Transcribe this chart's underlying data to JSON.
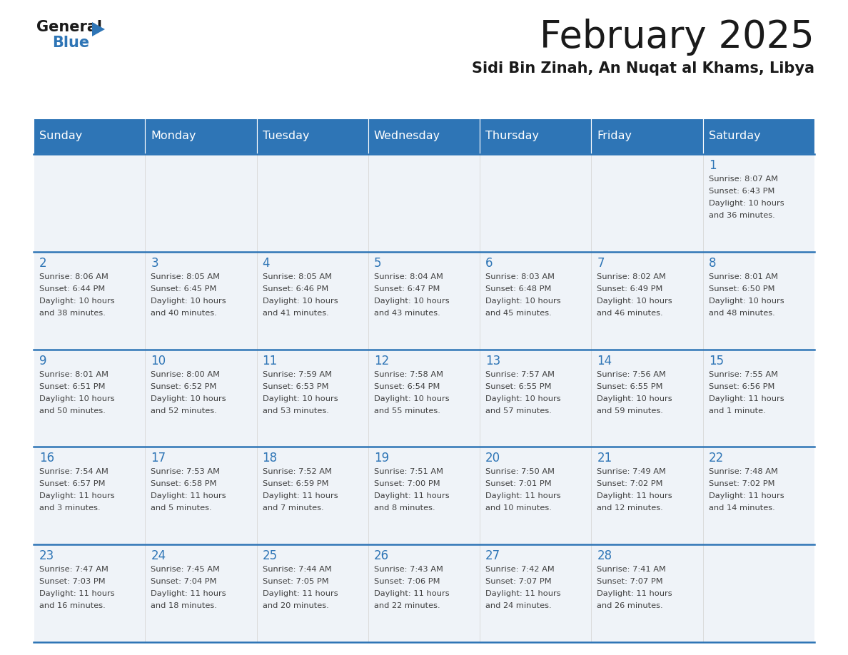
{
  "title": "February 2025",
  "subtitle": "Sidi Bin Zinah, An Nuqat al Khams, Libya",
  "header_bg": "#2e75b6",
  "header_text_color": "#ffffff",
  "cell_bg": "#f0f4f8",
  "day_number_color": "#2e75b6",
  "text_color": "#404040",
  "border_color": "#2e75b6",
  "days_of_week": [
    "Sunday",
    "Monday",
    "Tuesday",
    "Wednesday",
    "Thursday",
    "Friday",
    "Saturday"
  ],
  "weeks": [
    [
      {
        "day": null,
        "info": null
      },
      {
        "day": null,
        "info": null
      },
      {
        "day": null,
        "info": null
      },
      {
        "day": null,
        "info": null
      },
      {
        "day": null,
        "info": null
      },
      {
        "day": null,
        "info": null
      },
      {
        "day": 1,
        "info": "Sunrise: 8:07 AM\nSunset: 6:43 PM\nDaylight: 10 hours\nand 36 minutes."
      }
    ],
    [
      {
        "day": 2,
        "info": "Sunrise: 8:06 AM\nSunset: 6:44 PM\nDaylight: 10 hours\nand 38 minutes."
      },
      {
        "day": 3,
        "info": "Sunrise: 8:05 AM\nSunset: 6:45 PM\nDaylight: 10 hours\nand 40 minutes."
      },
      {
        "day": 4,
        "info": "Sunrise: 8:05 AM\nSunset: 6:46 PM\nDaylight: 10 hours\nand 41 minutes."
      },
      {
        "day": 5,
        "info": "Sunrise: 8:04 AM\nSunset: 6:47 PM\nDaylight: 10 hours\nand 43 minutes."
      },
      {
        "day": 6,
        "info": "Sunrise: 8:03 AM\nSunset: 6:48 PM\nDaylight: 10 hours\nand 45 minutes."
      },
      {
        "day": 7,
        "info": "Sunrise: 8:02 AM\nSunset: 6:49 PM\nDaylight: 10 hours\nand 46 minutes."
      },
      {
        "day": 8,
        "info": "Sunrise: 8:01 AM\nSunset: 6:50 PM\nDaylight: 10 hours\nand 48 minutes."
      }
    ],
    [
      {
        "day": 9,
        "info": "Sunrise: 8:01 AM\nSunset: 6:51 PM\nDaylight: 10 hours\nand 50 minutes."
      },
      {
        "day": 10,
        "info": "Sunrise: 8:00 AM\nSunset: 6:52 PM\nDaylight: 10 hours\nand 52 minutes."
      },
      {
        "day": 11,
        "info": "Sunrise: 7:59 AM\nSunset: 6:53 PM\nDaylight: 10 hours\nand 53 minutes."
      },
      {
        "day": 12,
        "info": "Sunrise: 7:58 AM\nSunset: 6:54 PM\nDaylight: 10 hours\nand 55 minutes."
      },
      {
        "day": 13,
        "info": "Sunrise: 7:57 AM\nSunset: 6:55 PM\nDaylight: 10 hours\nand 57 minutes."
      },
      {
        "day": 14,
        "info": "Sunrise: 7:56 AM\nSunset: 6:55 PM\nDaylight: 10 hours\nand 59 minutes."
      },
      {
        "day": 15,
        "info": "Sunrise: 7:55 AM\nSunset: 6:56 PM\nDaylight: 11 hours\nand 1 minute."
      }
    ],
    [
      {
        "day": 16,
        "info": "Sunrise: 7:54 AM\nSunset: 6:57 PM\nDaylight: 11 hours\nand 3 minutes."
      },
      {
        "day": 17,
        "info": "Sunrise: 7:53 AM\nSunset: 6:58 PM\nDaylight: 11 hours\nand 5 minutes."
      },
      {
        "day": 18,
        "info": "Sunrise: 7:52 AM\nSunset: 6:59 PM\nDaylight: 11 hours\nand 7 minutes."
      },
      {
        "day": 19,
        "info": "Sunrise: 7:51 AM\nSunset: 7:00 PM\nDaylight: 11 hours\nand 8 minutes."
      },
      {
        "day": 20,
        "info": "Sunrise: 7:50 AM\nSunset: 7:01 PM\nDaylight: 11 hours\nand 10 minutes."
      },
      {
        "day": 21,
        "info": "Sunrise: 7:49 AM\nSunset: 7:02 PM\nDaylight: 11 hours\nand 12 minutes."
      },
      {
        "day": 22,
        "info": "Sunrise: 7:48 AM\nSunset: 7:02 PM\nDaylight: 11 hours\nand 14 minutes."
      }
    ],
    [
      {
        "day": 23,
        "info": "Sunrise: 7:47 AM\nSunset: 7:03 PM\nDaylight: 11 hours\nand 16 minutes."
      },
      {
        "day": 24,
        "info": "Sunrise: 7:45 AM\nSunset: 7:04 PM\nDaylight: 11 hours\nand 18 minutes."
      },
      {
        "day": 25,
        "info": "Sunrise: 7:44 AM\nSunset: 7:05 PM\nDaylight: 11 hours\nand 20 minutes."
      },
      {
        "day": 26,
        "info": "Sunrise: 7:43 AM\nSunset: 7:06 PM\nDaylight: 11 hours\nand 22 minutes."
      },
      {
        "day": 27,
        "info": "Sunrise: 7:42 AM\nSunset: 7:07 PM\nDaylight: 11 hours\nand 24 minutes."
      },
      {
        "day": 28,
        "info": "Sunrise: 7:41 AM\nSunset: 7:07 PM\nDaylight: 11 hours\nand 26 minutes."
      },
      {
        "day": null,
        "info": null
      }
    ]
  ]
}
